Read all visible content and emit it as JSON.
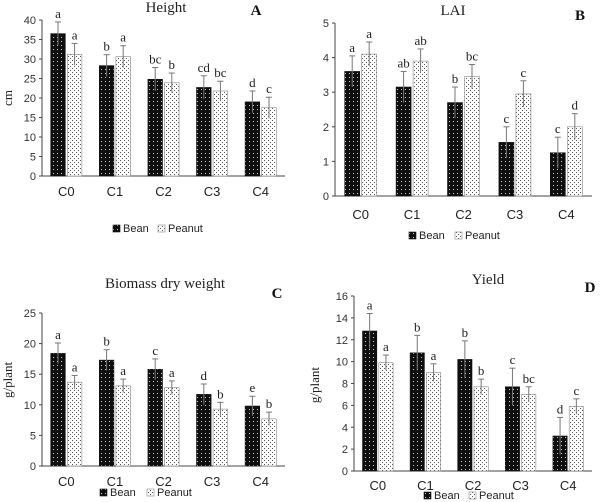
{
  "chart_data": [
    {
      "type": "bar",
      "panel_letter": "A",
      "title": "Height",
      "ylabel": "cm",
      "categories": [
        "C0",
        "C1",
        "C2",
        "C3",
        "C4"
      ],
      "ylim": [
        0,
        40
      ],
      "yticks": [
        0,
        5,
        10,
        15,
        20,
        25,
        30,
        35,
        40
      ],
      "series": [
        {
          "name": "Bean",
          "values": [
            36.5,
            28.3,
            24.8,
            22.7,
            19.0
          ],
          "errors": [
            3.0,
            2.8,
            3.0,
            3.0,
            2.8
          ],
          "letters": [
            "a",
            "b",
            "bc",
            "cd",
            "d"
          ]
        },
        {
          "name": "Peanut",
          "values": [
            31.2,
            30.6,
            23.9,
            21.8,
            17.5
          ],
          "errors": [
            2.8,
            2.8,
            2.5,
            2.5,
            2.7
          ],
          "letters": [
            "a",
            "a",
            "b",
            "bc",
            "c"
          ]
        }
      ],
      "legend_position": "bottom",
      "grid": false
    },
    {
      "type": "bar",
      "panel_letter": "B",
      "title": "LAI",
      "ylabel": "",
      "categories": [
        "C0",
        "C1",
        "C2",
        "C3",
        "C4"
      ],
      "ylim": [
        0,
        5
      ],
      "yticks": [
        0,
        1,
        2,
        3,
        4,
        5
      ],
      "series": [
        {
          "name": "Bean",
          "values": [
            3.6,
            3.15,
            2.7,
            1.55,
            1.25
          ],
          "errors": [
            0.45,
            0.45,
            0.45,
            0.45,
            0.45
          ],
          "letters": [
            "a",
            "ab",
            "b",
            "c",
            "c"
          ]
        },
        {
          "name": "Peanut",
          "values": [
            4.1,
            3.9,
            3.45,
            2.95,
            2.0
          ],
          "errors": [
            0.35,
            0.35,
            0.35,
            0.38,
            0.38
          ],
          "letters": [
            "a",
            "ab",
            "bc",
            "c",
            "d"
          ]
        }
      ],
      "legend_position": "bottom",
      "grid": false
    },
    {
      "type": "bar",
      "panel_letter": "C",
      "title": "Biomass dry weight",
      "ylabel": "g/plant",
      "categories": [
        "C0",
        "C1",
        "C2",
        "C3",
        "C4"
      ],
      "ylim": [
        0,
        25
      ],
      "yticks": [
        0,
        5,
        10,
        15,
        20,
        25
      ],
      "series": [
        {
          "name": "Bean",
          "values": [
            18.4,
            17.3,
            15.8,
            11.7,
            9.8
          ],
          "errors": [
            1.7,
            1.7,
            1.7,
            1.7,
            1.6
          ],
          "letters": [
            "a",
            "b",
            "c",
            "d",
            "e"
          ]
        },
        {
          "name": "Peanut",
          "values": [
            13.7,
            13.1,
            12.8,
            9.3,
            7.7
          ],
          "errors": [
            1.1,
            1.1,
            1.1,
            1.1,
            1.1
          ],
          "letters": [
            "a",
            "a",
            "a",
            "b",
            "b"
          ]
        }
      ],
      "legend_position": "bottom",
      "grid": false
    },
    {
      "type": "bar",
      "panel_letter": "D",
      "title": "Yield",
      "ylabel": "g/plant",
      "categories": [
        "C0",
        "C1",
        "C2",
        "C3",
        "C4"
      ],
      "ylim": [
        0,
        16
      ],
      "yticks": [
        0,
        2,
        4,
        6,
        8,
        10,
        12,
        14,
        16
      ],
      "series": [
        {
          "name": "Bean",
          "values": [
            12.8,
            10.8,
            10.2,
            7.7,
            3.2
          ],
          "errors": [
            1.6,
            1.6,
            1.7,
            1.7,
            1.7
          ],
          "letters": [
            "a",
            "b",
            "b",
            "c",
            "d"
          ]
        },
        {
          "name": "Peanut",
          "values": [
            9.9,
            9.0,
            7.7,
            7.0,
            5.9
          ],
          "errors": [
            0.7,
            0.8,
            0.7,
            0.7,
            0.7
          ],
          "letters": [
            "a",
            "a",
            "b",
            "bc",
            "c"
          ]
        }
      ],
      "legend_position": "bottom",
      "grid": false
    }
  ]
}
